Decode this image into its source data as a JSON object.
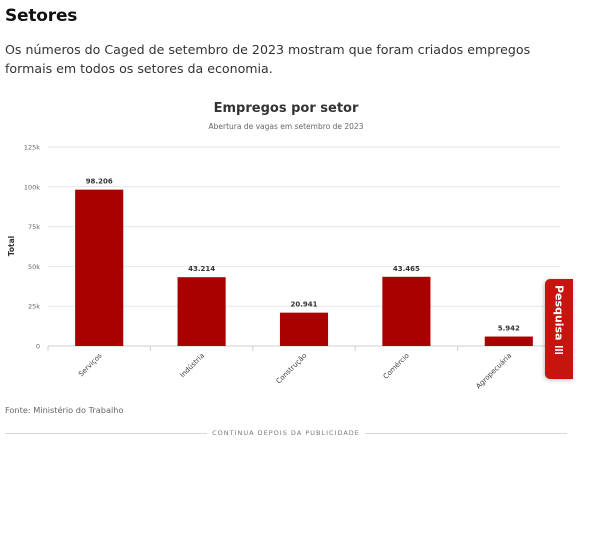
{
  "section": {
    "title": "Setores",
    "lead": "Os números do Caged de setembro de 2023 mostram que foram criados empregos formais em todos os setores da economia."
  },
  "chart_data": {
    "type": "bar",
    "title": "Empregos por setor",
    "subtitle": "Abertura de vagas em setembro de 2023",
    "ylabel": "Total",
    "xlabel": "",
    "categories": [
      "Serviços",
      "Indústria",
      "Construção",
      "Comércio",
      "Agropecuária"
    ],
    "values": [
      98206,
      43214,
      20941,
      43465,
      5942
    ],
    "value_labels": [
      "98.206",
      "43.214",
      "20.941",
      "43.465",
      "5.942"
    ],
    "ylim": [
      0,
      125000
    ],
    "yticks": [
      0,
      25000,
      50000,
      75000,
      100000,
      125000
    ],
    "ytick_labels": [
      "0",
      "25k",
      "50k",
      "75k",
      "100k",
      "125k"
    ],
    "bar_color": "#a90000",
    "grid": true
  },
  "source": "Fonte: Ministério do Trabalho",
  "ad_divider": "CONTINUA DEPOIS DA PUBLICIDADE",
  "side_tab": {
    "label": "Pesquisa",
    "icon": "survey-icon",
    "color": "#c8140e"
  }
}
